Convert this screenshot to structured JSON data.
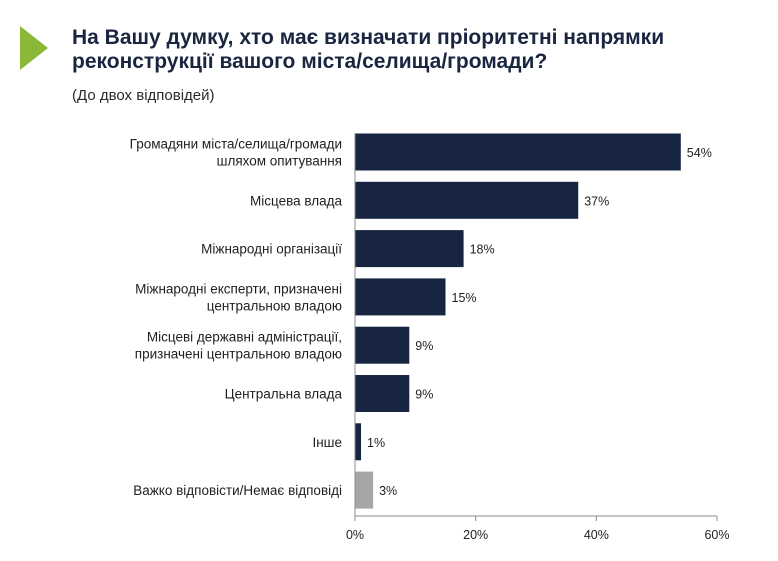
{
  "header": {
    "title_line1": "На Вашу думку, хто має визначати пріоритетні напрямки",
    "title_line2": "реконструкції вашого міста/селища/громади?",
    "subtitle": "(До двох відповідей)"
  },
  "colors": {
    "accent": "#8cb83a",
    "bar": "#172542",
    "bar_muted": "#a6a6a6",
    "axis": "#8c8c8c"
  },
  "chart_data": {
    "type": "bar",
    "orientation": "horizontal",
    "categories": [
      [
        "Громадяни міста/селища/громади",
        "шляхом опитування"
      ],
      [
        "Місцева влада"
      ],
      [
        "Міжнародні організації"
      ],
      [
        "Міжнародні експерти, призначені",
        "центральною владою"
      ],
      [
        "Місцеві державні адміністрації,",
        "призначені центральною владою"
      ],
      [
        "Центральна влада"
      ],
      [
        "Інше"
      ],
      [
        "Важко відповісти/Немає відповіді"
      ]
    ],
    "values": [
      54,
      37,
      18,
      15,
      9,
      9,
      1,
      3
    ],
    "value_labels": [
      "54%",
      "37%",
      "18%",
      "15%",
      "9%",
      "9%",
      "1%",
      "3%"
    ],
    "muted_bars": [
      7
    ],
    "xlim": [
      0,
      60
    ],
    "xticks": [
      0,
      20,
      40,
      60
    ],
    "xtick_labels": [
      "0%",
      "20%",
      "40%",
      "60%"
    ],
    "grid": false,
    "legend": false
  }
}
